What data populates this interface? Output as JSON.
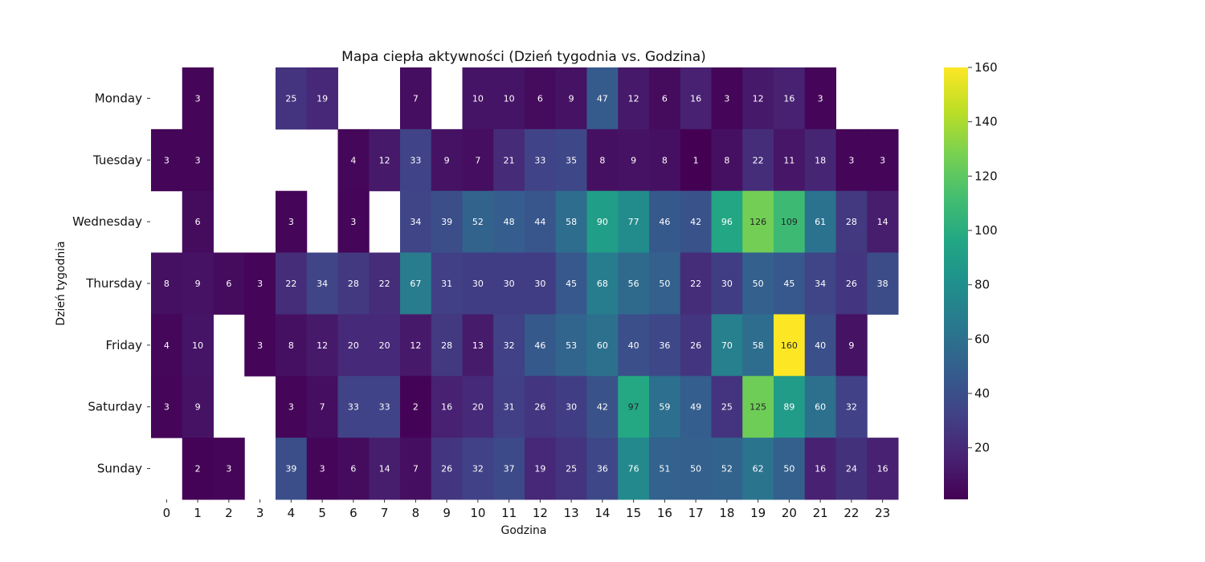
{
  "chart_data": {
    "type": "heatmap",
    "title": "Mapa ciepła aktywności (Dzień tygodnia vs. Godzina)",
    "xlabel": "Godzina",
    "ylabel": "Dzień tygodnia",
    "x_categories": [
      "0",
      "1",
      "2",
      "3",
      "4",
      "5",
      "6",
      "7",
      "8",
      "9",
      "10",
      "11",
      "12",
      "13",
      "14",
      "15",
      "16",
      "17",
      "18",
      "19",
      "20",
      "21",
      "22",
      "23"
    ],
    "y_categories": [
      "Monday",
      "Tuesday",
      "Wednesday",
      "Thursday",
      "Friday",
      "Saturday",
      "Sunday"
    ],
    "values": [
      [
        null,
        3,
        null,
        null,
        25,
        19,
        null,
        null,
        7,
        null,
        10,
        10,
        6,
        9,
        47,
        12,
        6,
        16,
        3,
        12,
        16,
        3,
        null,
        null
      ],
      [
        3,
        3,
        null,
        null,
        null,
        null,
        4,
        12,
        33,
        9,
        7,
        21,
        33,
        35,
        8,
        9,
        8,
        1,
        8,
        22,
        11,
        18,
        3,
        3
      ],
      [
        null,
        6,
        null,
        null,
        3,
        null,
        3,
        null,
        34,
        39,
        52,
        48,
        44,
        58,
        90,
        77,
        46,
        42,
        96,
        126,
        109,
        61,
        28,
        14
      ],
      [
        8,
        9,
        6,
        3,
        22,
        34,
        28,
        22,
        67,
        31,
        30,
        30,
        30,
        45,
        68,
        56,
        50,
        22,
        30,
        50,
        45,
        34,
        26,
        38
      ],
      [
        4,
        10,
        null,
        3,
        8,
        12,
        20,
        20,
        12,
        28,
        13,
        32,
        46,
        53,
        60,
        40,
        36,
        26,
        70,
        58,
        160,
        40,
        9,
        null
      ],
      [
        3,
        9,
        null,
        null,
        3,
        7,
        33,
        33,
        2,
        16,
        20,
        31,
        26,
        30,
        42,
        97,
        59,
        49,
        25,
        125,
        89,
        60,
        32,
        null
      ],
      [
        null,
        2,
        3,
        null,
        39,
        3,
        6,
        14,
        7,
        26,
        32,
        37,
        19,
        25,
        36,
        76,
        51,
        50,
        52,
        62,
        50,
        16,
        24,
        16
      ]
    ],
    "colormap": "viridis",
    "vmin": 1,
    "vmax": 160,
    "colorbar_ticks": [
      20,
      40,
      60,
      80,
      100,
      120,
      140,
      160
    ],
    "annotation_text_dark": "#262626",
    "annotation_text_light": "#ffffff"
  }
}
